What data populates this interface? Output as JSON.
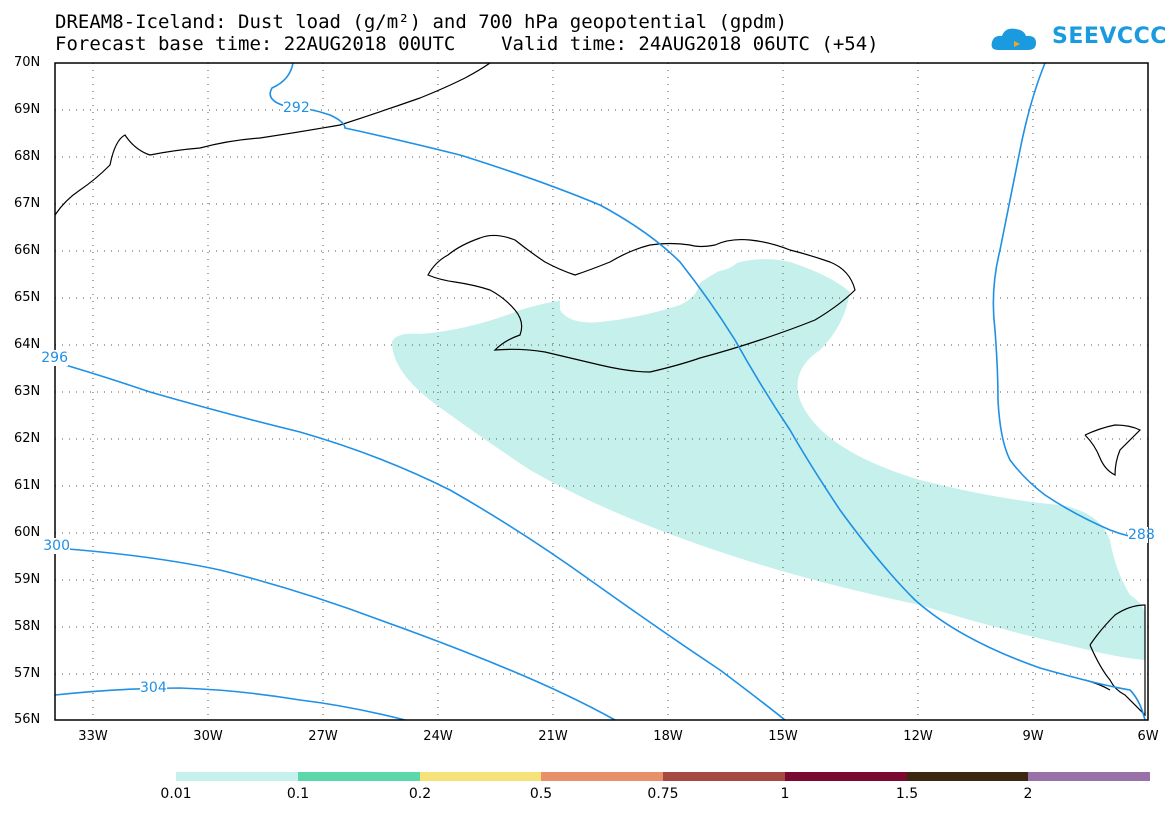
{
  "header": {
    "title_line1": "DREAM8-Iceland: Dust load (g/m²) and 700 hPa geopotential (gpdm)",
    "title_line2": "Forecast base time: 22AUG2018 00UTC    Valid time: 24AUG2018 06UTC (+54)",
    "logo_text": "SEEVCCC",
    "logo_color": "#1a9be0"
  },
  "map": {
    "lat_labels": [
      "70N",
      "69N",
      "68N",
      "67N",
      "66N",
      "65N",
      "64N",
      "63N",
      "62N",
      "61N",
      "60N",
      "59N",
      "58N",
      "57N",
      "56N"
    ],
    "lon_labels": [
      "33W",
      "30W",
      "27W",
      "24W",
      "21W",
      "18W",
      "15W",
      "12W",
      "9W",
      "6W"
    ],
    "contour_labels": [
      "292",
      "296",
      "300",
      "304",
      "288"
    ],
    "dust_color": "#c6f0eb",
    "contour_color": "#1e90e6",
    "coast_color": "#000000"
  },
  "colorbar": {
    "colors": [
      "#c6f0eb",
      "#5ad8aa",
      "#f5e37a",
      "#e8906a",
      "#a54a40",
      "#7a0a30",
      "#3c2810",
      "#9a70a8"
    ],
    "labels": [
      "0.01",
      "0.1",
      "0.2",
      "0.5",
      "0.75",
      "1",
      "1.5",
      "2"
    ]
  }
}
